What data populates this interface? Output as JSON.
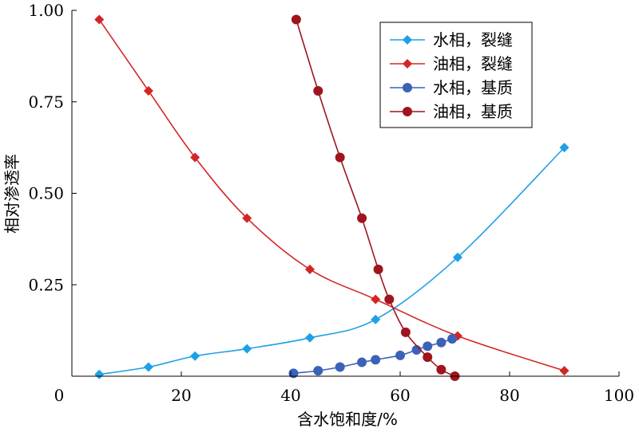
{
  "chart_data": {
    "type": "line",
    "xlabel": "含水饱和度/%",
    "ylabel": "相对渗透率",
    "xlim": [
      0,
      100
    ],
    "ylim": [
      0,
      1
    ],
    "x_ticks": [
      "0",
      "20",
      "40",
      "60",
      "80",
      "100"
    ],
    "y_ticks": [
      "0.25",
      "0.50",
      "0.75",
      "1.00"
    ],
    "grid": false,
    "legend_position": "top-right",
    "series": [
      {
        "name": "水相，裂缝",
        "marker": "diamond",
        "color": "#1ea0e6",
        "x": [
          5,
          14,
          22.5,
          32,
          43.5,
          55.5,
          70.5,
          90
        ],
        "y": [
          0.005,
          0.025,
          0.055,
          0.075,
          0.105,
          0.155,
          0.325,
          0.625
        ]
      },
      {
        "name": "油相，裂缝",
        "marker": "diamond",
        "color": "#d42525",
        "x": [
          5,
          14,
          22.5,
          32,
          43.5,
          55.5,
          70.5,
          90
        ],
        "y": [
          0.975,
          0.78,
          0.598,
          0.432,
          0.292,
          0.21,
          0.11,
          0.015
        ]
      },
      {
        "name": "水相，基质",
        "marker": "circle",
        "color": "#3a62b8",
        "x": [
          40.5,
          45,
          49,
          53,
          55.5,
          60,
          63,
          65,
          67.5,
          69.5
        ],
        "y": [
          0.008,
          0.015,
          0.025,
          0.038,
          0.045,
          0.057,
          0.072,
          0.082,
          0.092,
          0.102
        ]
      },
      {
        "name": "油相，基质",
        "marker": "circle",
        "color": "#a0141e",
        "x": [
          41,
          45,
          49,
          53,
          56,
          58,
          61,
          65,
          67.5,
          70
        ],
        "y": [
          0.975,
          0.78,
          0.598,
          0.432,
          0.292,
          0.21,
          0.12,
          0.052,
          0.018,
          0
        ]
      }
    ]
  }
}
